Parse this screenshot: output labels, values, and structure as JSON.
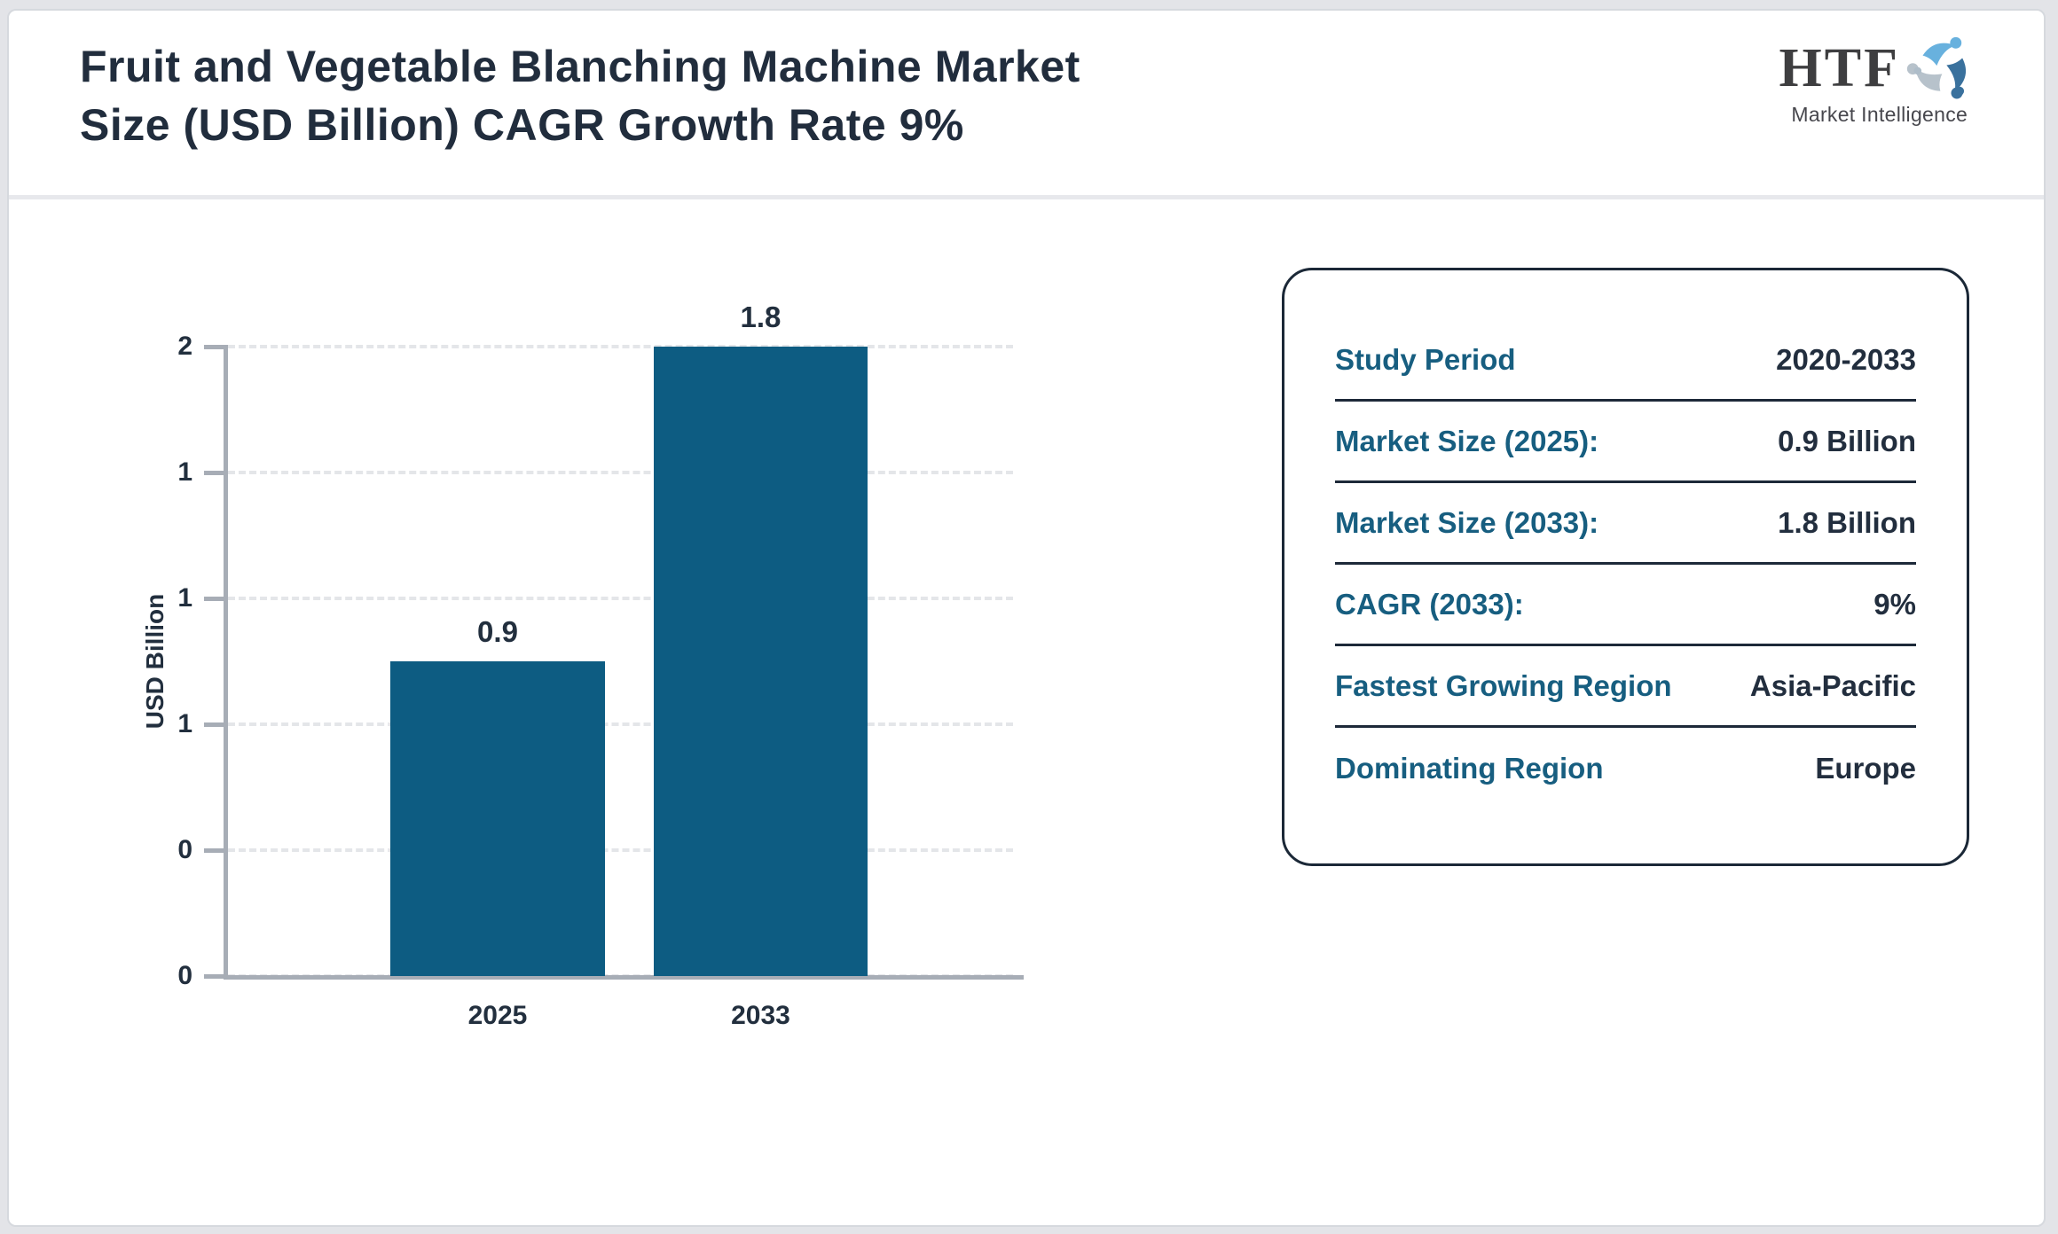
{
  "page": {
    "title_line1": "Fruit and Vegetable Blanching Machine Market",
    "title_line2": "Size (USD Billion) CAGR Growth Rate 9%"
  },
  "logo": {
    "acronym": "HTF",
    "subtitle": "Market Intelligence",
    "swirl_colors": [
      "#68b1de",
      "#3a719d",
      "#b7c2cb"
    ]
  },
  "chart_data": {
    "type": "bar",
    "categories": [
      "2025",
      "2033"
    ],
    "values": [
      0.9,
      1.8
    ],
    "bar_labels": [
      "0.9",
      "1.8"
    ],
    "title": "",
    "xlabel": "",
    "ylabel": "USD Billion",
    "ylim": [
      0,
      1.8
    ],
    "y_tick_labels_top_to_bottom": [
      "2",
      "1",
      "1",
      "1",
      "0",
      "0"
    ],
    "grid": "horizontal-dashed",
    "legend": "none",
    "bar_color": "#0d5c82"
  },
  "info_card": {
    "rows": [
      {
        "label": "Study Period",
        "value": "2020-2033"
      },
      {
        "label": "Market Size (2025):",
        "value": "0.9 Billion"
      },
      {
        "label": "Market Size (2033):",
        "value": "1.8 Billion"
      },
      {
        "label": "CAGR (2033):",
        "value": "9%"
      },
      {
        "label": "Fastest Growing Region",
        "value": "Asia-Pacific"
      },
      {
        "label": "Dominating Region",
        "value": "Europe"
      }
    ]
  },
  "colors": {
    "bar": "#0d5c82",
    "label_teal": "#175e80",
    "value_navy": "#222e3e",
    "title_navy": "#212d3d",
    "axis_gray": "#a7adb6",
    "grid_gray": "#e4e6e9",
    "page_bg": "#ffffff",
    "outer_bg": "#e3e4e8"
  }
}
